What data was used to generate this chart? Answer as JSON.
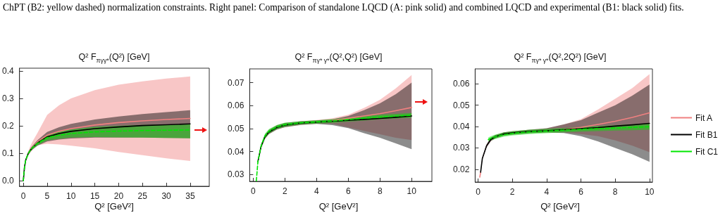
{
  "chart_data": [
    {
      "type": "line",
      "title": "Q² F$_{πγγ*}$(Q²) [GeV]",
      "xlabel": "Q²  [GeV²]",
      "annotations": [
        "ChPT (B2: yellow dashed) normalization constraints. Right panel: Comparison of standalone LQCD (A: pink solid) and combined LQCD and experimental (B1: black solid) fits."
      ],
      "xlim": [
        -0.8,
        39
      ],
      "xticks": [
        0,
        5,
        10,
        15,
        20,
        25,
        30,
        35
      ],
      "ylim": [
        -0.02,
        0.41
      ],
      "yticks": [
        {
          "value": 0,
          "label": "0.0"
        },
        0.1,
        0.2,
        0.3,
        0.4
      ],
      "series": [
        {
          "color": "#f08080",
          "x": [
            0,
            0.25,
            0.5,
            1,
            1.5,
            2,
            3,
            5,
            7.5,
            10,
            15,
            20,
            25,
            30,
            35
          ],
          "values": [
            null,
            null,
            null,
            0.098,
            0.113,
            0.124,
            0.142,
            0.166,
            0.18,
            0.19,
            0.203,
            0.212,
            0.218,
            0.223,
            0.227
          ],
          "lower": [
            0,
            0.05,
            0.073,
            0.091,
            0.104,
            0.113,
            0.13,
            0.135,
            0.132,
            0.128,
            0.118,
            0.105,
            0.093,
            0.082,
            0.072
          ],
          "upper": [
            0,
            0.05,
            0.077,
            0.106,
            0.128,
            0.145,
            0.175,
            0.24,
            0.275,
            0.3,
            0.33,
            0.35,
            0.362,
            0.372,
            0.38
          ]
        },
        {
          "color": "#000000",
          "x": [
            0,
            0.25,
            0.5,
            1,
            1.5,
            2,
            3,
            5,
            7.5,
            10,
            15,
            20,
            25,
            30,
            35
          ],
          "values": [
            0,
            0.05,
            0.075,
            0.098,
            0.112,
            0.122,
            0.138,
            0.16,
            0.172,
            0.18,
            0.19,
            0.196,
            0.201,
            0.204,
            0.207
          ],
          "lower": [
            0,
            0.05,
            0.073,
            0.093,
            0.106,
            0.115,
            0.128,
            0.143,
            0.15,
            0.154,
            0.157,
            0.157,
            0.157,
            0.156,
            0.155
          ],
          "upper": [
            0,
            0.05,
            0.077,
            0.103,
            0.118,
            0.129,
            0.148,
            0.178,
            0.195,
            0.207,
            0.223,
            0.234,
            0.243,
            0.25,
            0.257
          ]
        },
        {
          "color": "#00e600",
          "line_style": "dashed",
          "x": [
            0,
            0.25,
            0.5,
            1,
            1.5,
            2,
            3,
            5,
            7.5,
            10,
            15,
            20,
            25,
            30,
            35
          ],
          "values": [
            0,
            0.05,
            0.075,
            0.098,
            0.112,
            0.122,
            0.137,
            0.157,
            0.166,
            0.172,
            0.178,
            0.181,
            0.183,
            0.184,
            0.185
          ],
          "lower": [
            0,
            0.05,
            0.073,
            0.094,
            0.107,
            0.116,
            0.13,
            0.147,
            0.153,
            0.157,
            0.159,
            0.158,
            0.157,
            0.156,
            0.155
          ],
          "upper": [
            0,
            0.05,
            0.077,
            0.102,
            0.117,
            0.128,
            0.144,
            0.167,
            0.18,
            0.187,
            0.196,
            0.2,
            0.203,
            0.204,
            0.205
          ]
        }
      ]
    },
    {
      "type": "line",
      "title": "Q² F$_{πγ* γ*}$(Q²,Q²) [GeV]",
      "xlabel": "Q²  [GeV²]",
      "xlim": [
        -0.22,
        11.28
      ],
      "xticks": [
        0,
        2,
        4,
        6,
        8,
        10
      ],
      "ylim": [
        0.027,
        0.076
      ],
      "yticks": [
        0.03,
        0.04,
        0.05,
        0.06,
        0.07
      ],
      "series": [
        {
          "color": "#f08080",
          "x": [
            0.3,
            0.5,
            0.75,
            1,
            1.5,
            2,
            3,
            4,
            5,
            6,
            7,
            8,
            9,
            10
          ],
          "values": [
            null,
            null,
            null,
            null,
            null,
            null,
            null,
            null,
            0.0535,
            0.0545,
            0.0555,
            0.0565,
            0.0578,
            0.0592
          ],
          "lower": [
            0.035,
            0.0414,
            0.0456,
            0.0476,
            0.0496,
            0.0506,
            0.0516,
            0.0521,
            0.052,
            0.0505,
            0.049,
            0.0475,
            0.046,
            0.045
          ],
          "upper": [
            0.0362,
            0.043,
            0.0474,
            0.0494,
            0.0514,
            0.0524,
            0.0532,
            0.0537,
            0.0545,
            0.056,
            0.059,
            0.0625,
            0.0675,
            0.0733
          ]
        },
        {
          "color": "#000000",
          "x": [
            0.3,
            0.5,
            0.75,
            1,
            1.5,
            2,
            3,
            4,
            5,
            6,
            7,
            8,
            9,
            10
          ],
          "values": [
            0.0356,
            0.0422,
            0.0465,
            0.0485,
            0.0505,
            0.0515,
            0.0524,
            0.0528,
            0.0532,
            0.0536,
            0.054,
            0.0544,
            0.0549,
            0.0555
          ],
          "lower": [
            0.035,
            0.0414,
            0.0456,
            0.0476,
            0.0496,
            0.0506,
            0.0516,
            0.052,
            0.0515,
            0.0502,
            0.048,
            0.046,
            0.0435,
            0.041
          ],
          "upper": [
            0.0362,
            0.043,
            0.0474,
            0.0494,
            0.0514,
            0.0524,
            0.0532,
            0.0536,
            0.054,
            0.0555,
            0.058,
            0.061,
            0.065,
            0.07
          ]
        },
        {
          "color": "#00e600",
          "line_style": "dashed",
          "x": [
            0.2,
            0.3,
            0.5,
            0.75,
            1,
            1.5,
            2,
            3,
            4,
            5,
            6,
            7,
            8,
            9,
            10
          ],
          "values": [
            0.0272,
            0.0356,
            0.0424,
            0.0468,
            0.0488,
            0.0507,
            0.0517,
            0.0525,
            0.0529,
            0.0533,
            0.0539,
            0.0545,
            0.055,
            0.0554,
            0.0558
          ],
          "lower": [
            0.0272,
            0.035,
            0.0416,
            0.0458,
            0.0478,
            0.0498,
            0.0508,
            0.0518,
            0.0522,
            0.0525,
            0.053,
            0.0535,
            0.054,
            0.0544,
            0.0548
          ],
          "upper": [
            0.0272,
            0.0362,
            0.0432,
            0.0478,
            0.0498,
            0.0516,
            0.0526,
            0.0532,
            0.0536,
            0.0541,
            0.0548,
            0.0555,
            0.056,
            0.0564,
            0.0568
          ]
        }
      ]
    },
    {
      "type": "line",
      "title": "Q² F$_{πγ* γ*}$(Q²,2Q²) [GeV]",
      "xlabel": "Q²  [GeV²]",
      "legend": "right",
      "xlim": [
        -0.17,
        10.17
      ],
      "xticks": [
        0,
        2,
        4,
        6,
        8,
        10
      ],
      "ylim": [
        0.014,
        0.067
      ],
      "yticks": [
        0.02,
        0.03,
        0.04,
        0.05,
        0.06
      ],
      "series": [
        {
          "name": "Fit A",
          "color": "#f08080",
          "x": [
            0.1,
            0.15,
            0.25,
            0.5,
            0.75,
            1,
            1.5,
            2,
            3,
            4,
            5,
            6,
            7,
            8,
            9,
            10
          ],
          "values": [
            0.0163,
            0.0186,
            null,
            null,
            null,
            null,
            null,
            null,
            null,
            null,
            0.0386,
            0.0396,
            0.041,
            0.0425,
            0.0443,
            0.0464
          ],
          "lower": [
            0.0161,
            0.0184,
            0.0245,
            0.0303,
            0.0332,
            0.0344,
            0.0357,
            0.0362,
            0.0369,
            0.0372,
            0.0372,
            0.0365,
            0.0355,
            0.0335,
            0.031,
            0.028
          ],
          "upper": [
            0.0165,
            0.0188,
            0.0255,
            0.0317,
            0.0348,
            0.036,
            0.0373,
            0.0378,
            0.0385,
            0.0392,
            0.041,
            0.0435,
            0.048,
            0.053,
            0.058,
            0.0645
          ]
        },
        {
          "name": "Fit B1",
          "color": "#000000",
          "x": [
            0.15,
            0.25,
            0.5,
            0.75,
            1,
            1.5,
            2,
            3,
            4,
            5,
            6,
            7,
            8,
            9,
            10
          ],
          "values": [
            0.0186,
            0.025,
            0.031,
            0.034,
            0.0352,
            0.0365,
            0.037,
            0.0377,
            0.038,
            0.0385,
            0.039,
            0.0395,
            0.0402,
            0.0408,
            0.0415
          ],
          "lower": [
            0.0184,
            0.0245,
            0.0303,
            0.0332,
            0.0344,
            0.0357,
            0.0362,
            0.0369,
            0.0372,
            0.037,
            0.0355,
            0.033,
            0.03,
            0.027,
            0.0235
          ],
          "upper": [
            0.0188,
            0.0255,
            0.0317,
            0.0348,
            0.036,
            0.0373,
            0.0378,
            0.0385,
            0.0392,
            0.041,
            0.043,
            0.0465,
            0.05,
            0.0545,
            0.0597
          ]
        },
        {
          "name": "Fit C1",
          "color": "#00e600",
          "line_style": "dashed",
          "x": [
            0.6,
            0.75,
            1,
            1.5,
            2,
            3,
            4,
            5,
            6,
            7,
            8,
            9,
            10
          ],
          "values": [
            0.0339,
            0.0345,
            0.0352,
            0.0362,
            0.0368,
            0.0375,
            0.0379,
            0.0383,
            0.0387,
            0.039,
            0.0393,
            0.0396,
            0.0399
          ],
          "lower": [
            0.0329,
            0.0335,
            0.0342,
            0.0352,
            0.0358,
            0.0365,
            0.0369,
            0.0373,
            0.0376,
            0.0379,
            0.0381,
            0.0383,
            0.0385
          ],
          "upper": [
            0.0349,
            0.0355,
            0.0362,
            0.0372,
            0.0378,
            0.0385,
            0.0389,
            0.0393,
            0.0398,
            0.0402,
            0.0406,
            0.041,
            0.0414
          ]
        }
      ]
    }
  ]
}
